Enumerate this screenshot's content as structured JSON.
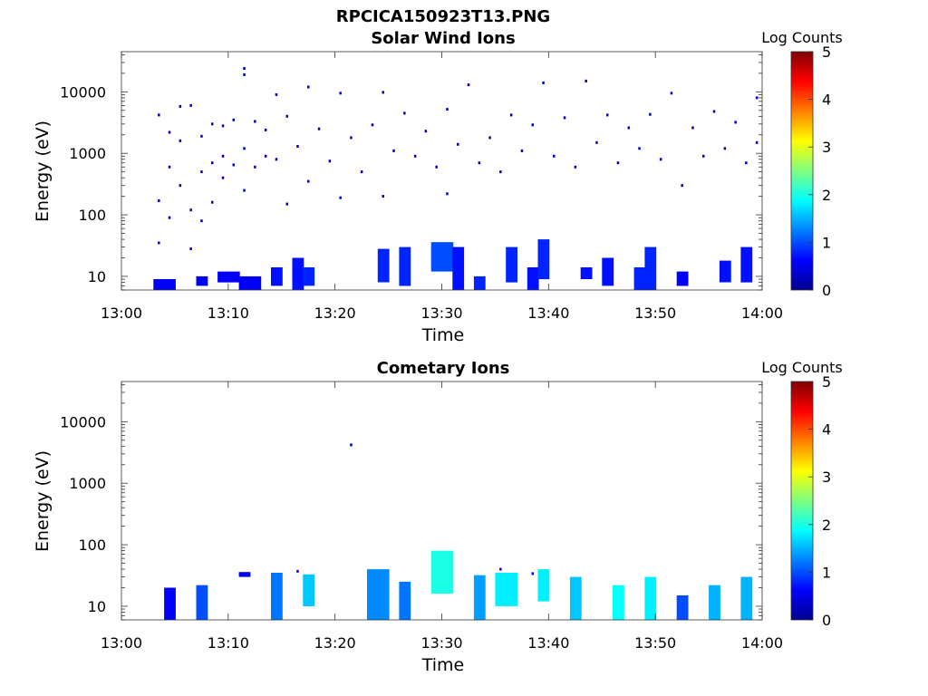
{
  "figure": {
    "title": "RPCICA150923T13.PNG"
  },
  "chart_data": [
    {
      "type": "heatmap",
      "title": "Solar Wind Ions",
      "xlabel": "Time",
      "ylabel": "Energy (eV)",
      "xlim": [
        "13:00",
        "14:00"
      ],
      "ylim": [
        6,
        45000
      ],
      "yscale": "log",
      "xticks": [
        "13:00",
        "13:10",
        "13:20",
        "13:30",
        "13:40",
        "13:50",
        "14:00"
      ],
      "yticks": [
        10,
        100,
        1000,
        10000
      ],
      "ytick_labels": [
        "10",
        "100",
        "1000",
        "10000"
      ],
      "colorbar": {
        "label": "Log Counts",
        "range": [
          0,
          5
        ],
        "ticks": [
          "0",
          "1",
          "2",
          "3",
          "4",
          "5"
        ],
        "colormap": "jet"
      },
      "grid": false,
      "points": [
        {
          "t": "13:03",
          "e": 4200,
          "v": 0.3
        },
        {
          "t": "13:03",
          "e": 170,
          "v": 0.3
        },
        {
          "t": "13:03",
          "e": 35,
          "v": 0.4
        },
        {
          "t": "13:04",
          "e": 2200,
          "v": 0.3
        },
        {
          "t": "13:04",
          "e": 90,
          "v": 0.3
        },
        {
          "t": "13:04",
          "e": 600,
          "v": 0.3
        },
        {
          "t": "13:05",
          "e": 5800,
          "v": 0.3
        },
        {
          "t": "13:05",
          "e": 1600,
          "v": 0.3
        },
        {
          "t": "13:05",
          "e": 300,
          "v": 0.3
        },
        {
          "t": "13:06",
          "e": 120,
          "v": 0.3
        },
        {
          "t": "13:06",
          "e": 28,
          "v": 0.4
        },
        {
          "t": "13:06",
          "e": 6000,
          "v": 0.3
        },
        {
          "t": "13:07",
          "e": 1900,
          "v": 0.3
        },
        {
          "t": "13:07",
          "e": 500,
          "v": 0.3
        },
        {
          "t": "13:07",
          "e": 80,
          "v": 0.4
        },
        {
          "t": "13:08",
          "e": 3000,
          "v": 0.3
        },
        {
          "t": "13:08",
          "e": 700,
          "v": 0.3
        },
        {
          "t": "13:08",
          "e": 160,
          "v": 0.3
        },
        {
          "t": "13:09",
          "e": 2800,
          "v": 0.3
        },
        {
          "t": "13:09",
          "e": 900,
          "v": 0.3
        },
        {
          "t": "13:09",
          "e": 400,
          "v": 0.3
        },
        {
          "t": "13:10",
          "e": 3500,
          "v": 0.3
        },
        {
          "t": "13:10",
          "e": 650,
          "v": 0.3
        },
        {
          "t": "13:11",
          "e": 24000,
          "v": 0.3
        },
        {
          "t": "13:11",
          "e": 19000,
          "v": 0.3
        },
        {
          "t": "13:11",
          "e": 1200,
          "v": 0.3
        },
        {
          "t": "13:11",
          "e": 250,
          "v": 0.3
        },
        {
          "t": "13:12",
          "e": 3300,
          "v": 0.3
        },
        {
          "t": "13:12",
          "e": 600,
          "v": 0.3
        },
        {
          "t": "13:13",
          "e": 2400,
          "v": 0.3
        },
        {
          "t": "13:13",
          "e": 900,
          "v": 0.3
        },
        {
          "t": "13:14",
          "e": 9000,
          "v": 0.3
        },
        {
          "t": "13:14",
          "e": 800,
          "v": 0.3
        },
        {
          "t": "13:15",
          "e": 4000,
          "v": 0.3
        },
        {
          "t": "13:15",
          "e": 150,
          "v": 0.3
        },
        {
          "t": "13:16",
          "e": 1300,
          "v": 0.3
        },
        {
          "t": "13:17",
          "e": 12000,
          "v": 0.3
        },
        {
          "t": "13:17",
          "e": 350,
          "v": 0.4
        },
        {
          "t": "13:18",
          "e": 2500,
          "v": 0.3
        },
        {
          "t": "13:19",
          "e": 750,
          "v": 0.3
        },
        {
          "t": "13:20",
          "e": 9500,
          "v": 0.3
        },
        {
          "t": "13:20",
          "e": 190,
          "v": 0.4
        },
        {
          "t": "13:21",
          "e": 1800,
          "v": 0.3
        },
        {
          "t": "13:22",
          "e": 500,
          "v": 0.3
        },
        {
          "t": "13:23",
          "e": 2900,
          "v": 0.3
        },
        {
          "t": "13:24",
          "e": 9800,
          "v": 0.3
        },
        {
          "t": "13:24",
          "e": 200,
          "v": 0.4
        },
        {
          "t": "13:25",
          "e": 1100,
          "v": 0.3
        },
        {
          "t": "13:26",
          "e": 4500,
          "v": 0.3
        },
        {
          "t": "13:27",
          "e": 900,
          "v": 0.3
        },
        {
          "t": "13:28",
          "e": 2300,
          "v": 0.3
        },
        {
          "t": "13:29",
          "e": 600,
          "v": 0.3
        },
        {
          "t": "13:30",
          "e": 5200,
          "v": 0.3
        },
        {
          "t": "13:30",
          "e": 220,
          "v": 0.4
        },
        {
          "t": "13:31",
          "e": 1400,
          "v": 0.3
        },
        {
          "t": "13:32",
          "e": 13000,
          "v": 0.3
        },
        {
          "t": "13:33",
          "e": 700,
          "v": 0.3
        },
        {
          "t": "13:34",
          "e": 1800,
          "v": 0.3
        },
        {
          "t": "13:35",
          "e": 500,
          "v": 0.3
        },
        {
          "t": "13:36",
          "e": 4200,
          "v": 0.3
        },
        {
          "t": "13:37",
          "e": 1100,
          "v": 0.3
        },
        {
          "t": "13:38",
          "e": 2900,
          "v": 0.3
        },
        {
          "t": "13:39",
          "e": 14000,
          "v": 0.3
        },
        {
          "t": "13:40",
          "e": 900,
          "v": 0.3
        },
        {
          "t": "13:41",
          "e": 3800,
          "v": 0.3
        },
        {
          "t": "13:42",
          "e": 600,
          "v": 0.3
        },
        {
          "t": "13:43",
          "e": 15000,
          "v": 0.3
        },
        {
          "t": "13:44",
          "e": 1500,
          "v": 0.3
        },
        {
          "t": "13:45",
          "e": 4200,
          "v": 0.3
        },
        {
          "t": "13:46",
          "e": 700,
          "v": 0.3
        },
        {
          "t": "13:47",
          "e": 2600,
          "v": 0.3
        },
        {
          "t": "13:48",
          "e": 1200,
          "v": 0.3
        },
        {
          "t": "13:49",
          "e": 4300,
          "v": 0.3
        },
        {
          "t": "13:50",
          "e": 800,
          "v": 0.3
        },
        {
          "t": "13:51",
          "e": 9500,
          "v": 0.3
        },
        {
          "t": "13:52",
          "e": 300,
          "v": 0.3
        },
        {
          "t": "13:53",
          "e": 2600,
          "v": 0.3
        },
        {
          "t": "13:54",
          "e": 900,
          "v": 0.3
        },
        {
          "t": "13:55",
          "e": 4800,
          "v": 0.3
        },
        {
          "t": "13:56",
          "e": 1200,
          "v": 0.3
        },
        {
          "t": "13:57",
          "e": 3200,
          "v": 0.3
        },
        {
          "t": "13:58",
          "e": 700,
          "v": 0.3
        },
        {
          "t": "13:59",
          "e": 8000,
          "v": 0.3
        },
        {
          "t": "13:59",
          "e": 1500,
          "v": 0.3
        }
      ],
      "bursts": [
        {
          "t0": "13:03",
          "t1": "13:05",
          "emin": 6,
          "emax": 9,
          "v": 0.6
        },
        {
          "t0": "13:07",
          "t1": "13:08",
          "emin": 7,
          "emax": 10,
          "v": 0.6
        },
        {
          "t0": "13:09",
          "t1": "13:11",
          "emin": 8,
          "emax": 12,
          "v": 0.6
        },
        {
          "t0": "13:11",
          "t1": "13:13",
          "emin": 6,
          "emax": 10,
          "v": 0.6
        },
        {
          "t0": "13:14",
          "t1": "13:15",
          "emin": 7,
          "emax": 14,
          "v": 0.7
        },
        {
          "t0": "13:16",
          "t1": "13:17",
          "emin": 6,
          "emax": 20,
          "v": 0.7
        },
        {
          "t0": "13:17",
          "t1": "13:18",
          "emin": 7,
          "emax": 14,
          "v": 0.8
        },
        {
          "t0": "13:24",
          "t1": "13:25",
          "emin": 8,
          "emax": 28,
          "v": 0.8
        },
        {
          "t0": "13:26",
          "t1": "13:27",
          "emin": 7,
          "emax": 30,
          "v": 0.8
        },
        {
          "t0": "13:29",
          "t1": "13:31",
          "emin": 12,
          "emax": 36,
          "v": 1.0
        },
        {
          "t0": "13:31",
          "t1": "13:32",
          "emin": 6,
          "emax": 30,
          "v": 0.7
        },
        {
          "t0": "13:33",
          "t1": "13:34",
          "emin": 6,
          "emax": 10,
          "v": 0.8
        },
        {
          "t0": "13:36",
          "t1": "13:37",
          "emin": 8,
          "emax": 30,
          "v": 0.8
        },
        {
          "t0": "13:38",
          "t1": "13:39",
          "emin": 6,
          "emax": 14,
          "v": 0.7
        },
        {
          "t0": "13:39",
          "t1": "13:40",
          "emin": 9,
          "emax": 40,
          "v": 0.8
        },
        {
          "t0": "13:43",
          "t1": "13:44",
          "emin": 9,
          "emax": 14,
          "v": 0.7
        },
        {
          "t0": "13:45",
          "t1": "13:46",
          "emin": 7,
          "emax": 20,
          "v": 0.7
        },
        {
          "t0": "13:48",
          "t1": "13:49",
          "emin": 6,
          "emax": 14,
          "v": 0.8
        },
        {
          "t0": "13:49",
          "t1": "13:50",
          "emin": 6,
          "emax": 30,
          "v": 0.8
        },
        {
          "t0": "13:52",
          "t1": "13:53",
          "emin": 7,
          "emax": 12,
          "v": 0.6
        },
        {
          "t0": "13:56",
          "t1": "13:57",
          "emin": 8,
          "emax": 18,
          "v": 0.7
        },
        {
          "t0": "13:58",
          "t1": "13:59",
          "emin": 8,
          "emax": 30,
          "v": 0.7
        }
      ]
    },
    {
      "type": "heatmap",
      "title": "Cometary Ions",
      "xlabel": "Time",
      "ylabel": "Energy (eV)",
      "xlim": [
        "13:00",
        "14:00"
      ],
      "ylim": [
        6,
        45000
      ],
      "yscale": "log",
      "xticks": [
        "13:00",
        "13:10",
        "13:20",
        "13:30",
        "13:40",
        "13:50",
        "14:00"
      ],
      "yticks": [
        10,
        100,
        1000,
        10000
      ],
      "ytick_labels": [
        "10",
        "100",
        "1000",
        "10000"
      ],
      "colorbar": {
        "label": "Log Counts",
        "range": [
          0,
          5
        ],
        "ticks": [
          "0",
          "1",
          "2",
          "3",
          "4",
          "5"
        ],
        "colormap": "jet"
      },
      "grid": false,
      "points": [
        {
          "t": "13:21",
          "e": 4200,
          "v": 0.3
        },
        {
          "t": "13:16",
          "e": 37,
          "v": 0.5
        },
        {
          "t": "13:35",
          "e": 40,
          "v": 0.5
        },
        {
          "t": "13:38",
          "e": 34,
          "v": 0.5
        }
      ],
      "bursts": [
        {
          "t0": "13:04",
          "t1": "13:05",
          "emin": 6,
          "emax": 20,
          "v": 0.6
        },
        {
          "t0": "13:07",
          "t1": "13:08",
          "emin": 6,
          "emax": 22,
          "v": 1.0
        },
        {
          "t0": "13:11",
          "t1": "13:12",
          "emin": 30,
          "emax": 36,
          "v": 0.6
        },
        {
          "t0": "13:14",
          "t1": "13:15",
          "emin": 6,
          "emax": 35,
          "v": 1.2
        },
        {
          "t0": "13:17",
          "t1": "13:18",
          "emin": 10,
          "emax": 33,
          "v": 1.6
        },
        {
          "t0": "13:23",
          "t1": "13:25",
          "emin": 6,
          "emax": 40,
          "v": 1.3
        },
        {
          "t0": "13:26",
          "t1": "13:27",
          "emin": 6,
          "emax": 25,
          "v": 1.2
        },
        {
          "t0": "13:29",
          "t1": "13:31",
          "emin": 16,
          "emax": 80,
          "v": 2.0
        },
        {
          "t0": "13:33",
          "t1": "13:34",
          "emin": 6,
          "emax": 32,
          "v": 1.4
        },
        {
          "t0": "13:35",
          "t1": "13:37",
          "emin": 10,
          "emax": 35,
          "v": 1.8
        },
        {
          "t0": "13:39",
          "t1": "13:40",
          "emin": 12,
          "emax": 40,
          "v": 1.8
        },
        {
          "t0": "13:42",
          "t1": "13:43",
          "emin": 6,
          "emax": 30,
          "v": 1.6
        },
        {
          "t0": "13:46",
          "t1": "13:47",
          "emin": 6,
          "emax": 22,
          "v": 1.9
        },
        {
          "t0": "13:49",
          "t1": "13:50",
          "emin": 6,
          "emax": 30,
          "v": 1.8
        },
        {
          "t0": "13:52",
          "t1": "13:53",
          "emin": 6,
          "emax": 15,
          "v": 1.0
        },
        {
          "t0": "13:55",
          "t1": "13:56",
          "emin": 6,
          "emax": 22,
          "v": 1.5
        },
        {
          "t0": "13:58",
          "t1": "13:59",
          "emin": 6,
          "emax": 30,
          "v": 1.5
        }
      ]
    }
  ]
}
